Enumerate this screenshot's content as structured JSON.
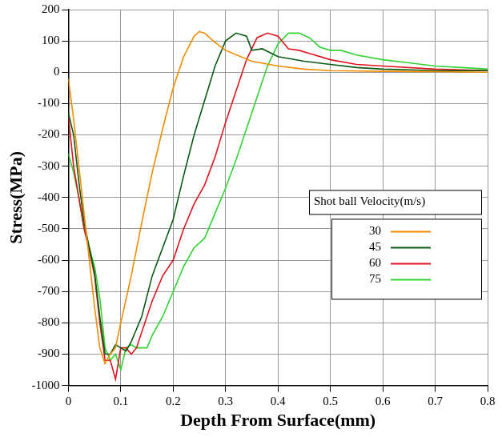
{
  "chart_data": {
    "type": "line",
    "x_label": "Depth From Surface(mm)",
    "y_label": "Stress(MPa)",
    "legend_title": "Shot ball Velocity(m/s)",
    "legend": "right",
    "grid": true,
    "xlim": [
      0,
      0.8
    ],
    "xticks": [
      0,
      0.1,
      0.2,
      0.3,
      0.4,
      0.5,
      0.6,
      0.7,
      0.8
    ],
    "ylim": [
      -1000,
      200
    ],
    "yticks": [
      -1000,
      -900,
      -800,
      -700,
      -600,
      -500,
      -400,
      -300,
      -200,
      -100,
      0,
      100,
      200
    ],
    "series": [
      {
        "name": "30",
        "color": "#f08c00",
        "x": [
          0,
          0.01,
          0.02,
          0.03,
          0.04,
          0.05,
          0.06,
          0.07,
          0.08,
          0.09,
          0.1,
          0.12,
          0.14,
          0.16,
          0.18,
          0.2,
          0.22,
          0.24,
          0.25,
          0.26,
          0.28,
          0.3,
          0.35,
          0.4,
          0.45,
          0.5,
          0.6,
          0.7,
          0.8
        ],
        "values": [
          -20,
          -150,
          -300,
          -450,
          -600,
          -750,
          -880,
          -930,
          -900,
          -880,
          -800,
          -650,
          -480,
          -320,
          -180,
          -50,
          50,
          115,
          130,
          125,
          95,
          70,
          35,
          20,
          10,
          5,
          3,
          2,
          0
        ]
      },
      {
        "name": "45",
        "color": "#0a5a14",
        "x": [
          0,
          0.01,
          0.02,
          0.03,
          0.04,
          0.05,
          0.06,
          0.07,
          0.08,
          0.09,
          0.1,
          0.11,
          0.12,
          0.14,
          0.16,
          0.18,
          0.2,
          0.22,
          0.24,
          0.26,
          0.28,
          0.3,
          0.32,
          0.34,
          0.35,
          0.37,
          0.4,
          0.45,
          0.5,
          0.55,
          0.6,
          0.7,
          0.8
        ],
        "values": [
          -130,
          -200,
          -350,
          -480,
          -560,
          -640,
          -780,
          -900,
          -900,
          -870,
          -880,
          -890,
          -860,
          -780,
          -650,
          -560,
          -470,
          -330,
          -200,
          -90,
          20,
          100,
          125,
          115,
          70,
          75,
          50,
          35,
          25,
          15,
          10,
          5,
          5
        ]
      },
      {
        "name": "60",
        "color": "#e0141e",
        "x": [
          0,
          0.01,
          0.02,
          0.03,
          0.04,
          0.05,
          0.06,
          0.07,
          0.08,
          0.09,
          0.1,
          0.11,
          0.12,
          0.13,
          0.14,
          0.16,
          0.18,
          0.2,
          0.22,
          0.24,
          0.26,
          0.28,
          0.3,
          0.32,
          0.34,
          0.36,
          0.38,
          0.4,
          0.42,
          0.44,
          0.46,
          0.5,
          0.55,
          0.6,
          0.7,
          0.8
        ],
        "values": [
          -140,
          -300,
          -400,
          -500,
          -570,
          -650,
          -800,
          -920,
          -920,
          -980,
          -880,
          -880,
          -900,
          -880,
          -830,
          -730,
          -650,
          -600,
          -500,
          -420,
          -360,
          -270,
          -160,
          -60,
          40,
          110,
          125,
          115,
          75,
          70,
          60,
          40,
          25,
          20,
          10,
          5
        ]
      },
      {
        "name": "75",
        "color": "#32d232",
        "x": [
          0,
          0.01,
          0.02,
          0.03,
          0.04,
          0.05,
          0.06,
          0.07,
          0.08,
          0.09,
          0.1,
          0.11,
          0.12,
          0.13,
          0.14,
          0.15,
          0.16,
          0.18,
          0.2,
          0.22,
          0.24,
          0.26,
          0.28,
          0.3,
          0.32,
          0.34,
          0.36,
          0.38,
          0.4,
          0.42,
          0.44,
          0.46,
          0.48,
          0.5,
          0.52,
          0.55,
          0.6,
          0.65,
          0.7,
          0.75,
          0.8
        ],
        "values": [
          -260,
          -320,
          -400,
          -500,
          -560,
          -620,
          -720,
          -880,
          -920,
          -900,
          -950,
          -880,
          -870,
          -880,
          -880,
          -880,
          -840,
          -780,
          -700,
          -620,
          -560,
          -530,
          -450,
          -370,
          -280,
          -180,
          -80,
          20,
          90,
          125,
          125,
          110,
          80,
          70,
          70,
          55,
          40,
          30,
          20,
          15,
          10
        ]
      }
    ]
  }
}
